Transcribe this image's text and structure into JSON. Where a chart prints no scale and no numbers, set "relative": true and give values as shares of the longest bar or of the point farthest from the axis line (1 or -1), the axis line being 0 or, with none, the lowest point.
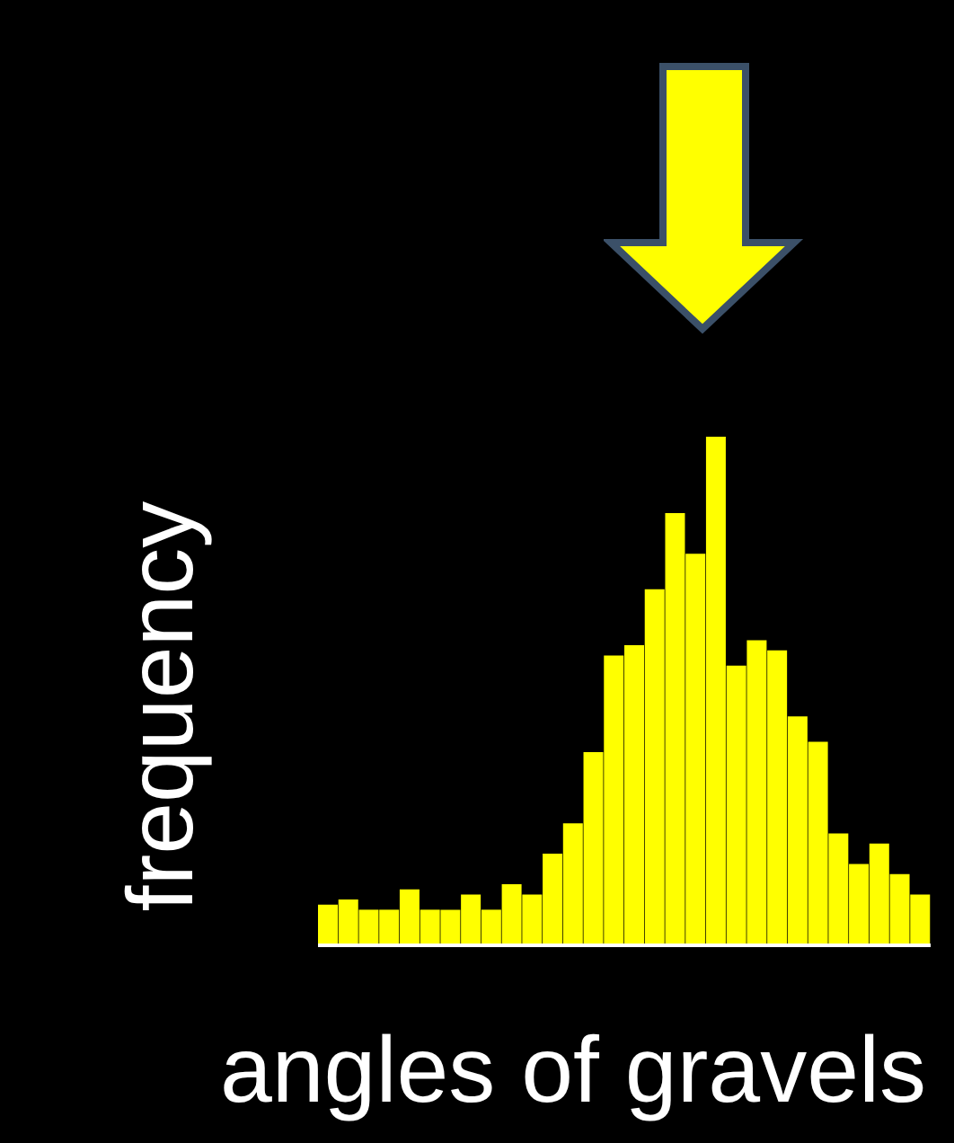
{
  "chart_data": {
    "type": "bar",
    "xlabel": "angles of gravels",
    "ylabel": "frequency",
    "relative": true,
    "color": "#ffff00",
    "categories": [
      null,
      null,
      null,
      null,
      null,
      null,
      null,
      null,
      null,
      null,
      null,
      null,
      null,
      null,
      null,
      null,
      null,
      null,
      null,
      null,
      null,
      null,
      null,
      null,
      null,
      null,
      null,
      null,
      null,
      null
    ],
    "values": [
      0.08,
      0.09,
      0.07,
      0.07,
      0.11,
      0.07,
      0.07,
      0.1,
      0.07,
      0.12,
      0.1,
      0.18,
      0.24,
      0.38,
      0.57,
      0.59,
      0.7,
      0.85,
      0.77,
      1,
      0.55,
      0.6,
      0.58,
      0.45,
      0.4,
      0.22,
      0.16,
      0.2,
      0.14,
      0.1
    ]
  }
}
